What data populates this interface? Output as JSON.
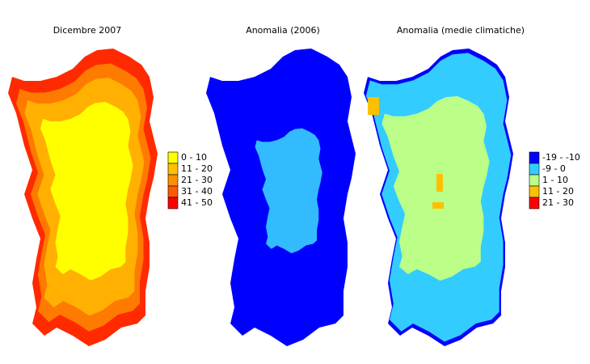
{
  "maps": [
    {
      "title": "Dicembre 2007",
      "legend": [
        {
          "label": "0 - 10",
          "color": "#ffff00"
        },
        {
          "label": "11 - 20",
          "color": "#ffc000"
        },
        {
          "label": "21 - 30",
          "color": "#ff9000"
        },
        {
          "label": "31 - 40",
          "color": "#ff5a00"
        },
        {
          "label": "41 - 50",
          "color": "#ff0000"
        }
      ]
    },
    {
      "title": "Anomalia (2006)"
    },
    {
      "title": "Anomalia (medie climatiche)",
      "legend": [
        {
          "label": "-19 - -10",
          "color": "#0000ff"
        },
        {
          "label": "-9 - 0",
          "color": "#33ccff"
        },
        {
          "label": "1 - 10",
          "color": "#bbff88"
        },
        {
          "label": "11 - 20",
          "color": "#ffc000"
        },
        {
          "label": "21 - 30",
          "color": "#ff0000"
        }
      ]
    }
  ]
}
